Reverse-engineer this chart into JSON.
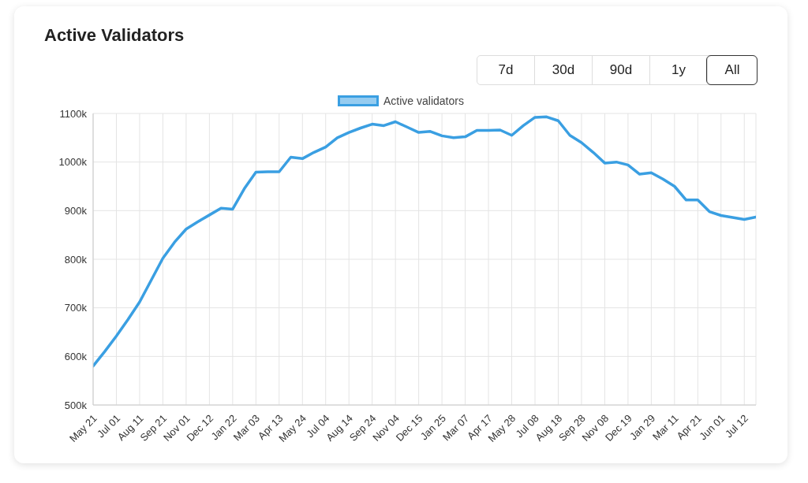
{
  "chart_data": {
    "type": "line",
    "title": "Active Validators",
    "annotations": [
      "7d",
      "30d",
      "90d",
      "1y",
      "All"
    ],
    "categories": [
      "May 21",
      null,
      "Jul 01",
      null,
      "Aug 11",
      null,
      "Sep 21",
      null,
      "Nov 01",
      null,
      "Dec 12",
      null,
      "Jan 22",
      null,
      "Mar 03",
      null,
      "Apr 13",
      null,
      "May 24",
      null,
      "Jul 04",
      null,
      "Aug 14",
      null,
      "Sep 24",
      null,
      "Nov 04",
      null,
      "Dec 15",
      null,
      "Jan 25",
      null,
      "Mar 07",
      null,
      "Apr 17",
      null,
      "May 28",
      null,
      "Jul 08",
      null,
      "Aug 18",
      null,
      "Sep 28",
      null,
      "Nov 08",
      null,
      "Dec 19",
      null,
      "Jan 29",
      null,
      "Mar 11",
      null,
      "Apr 21",
      null,
      "Jun 01",
      null,
      "Jul 12",
      null
    ],
    "series": [
      {
        "name": "Active validators",
        "color": "#3a9fe2",
        "values": [
          580,
          610,
          642,
          676,
          712,
          757,
          802,
          835,
          862,
          877,
          891,
          905,
          903,
          945,
          979,
          980,
          980,
          1010,
          1007,
          1020,
          1031,
          1050,
          1061,
          1070,
          1078,
          1075,
          1083,
          1072,
          1061,
          1063,
          1054,
          1050,
          1052,
          1065,
          1065,
          1066,
          1055,
          1075,
          1092,
          1093,
          1085,
          1055,
          1040,
          1020,
          998,
          1000,
          994,
          975,
          978,
          965,
          950,
          922,
          922,
          898,
          890,
          886,
          882,
          887
        ]
      }
    ],
    "ylim": [
      500,
      1100
    ],
    "yticks": [
      {
        "value": 500,
        "label": "500k"
      },
      {
        "value": 600,
        "label": "600k"
      },
      {
        "value": 700,
        "label": "700k"
      },
      {
        "value": 800,
        "label": "800k"
      },
      {
        "value": 900,
        "label": "900k"
      },
      {
        "value": 1000,
        "label": "1000k"
      },
      {
        "value": 1100,
        "label": "1100k"
      }
    ],
    "grid": true,
    "legend": "top",
    "marker": "none",
    "line_style": "solid"
  }
}
